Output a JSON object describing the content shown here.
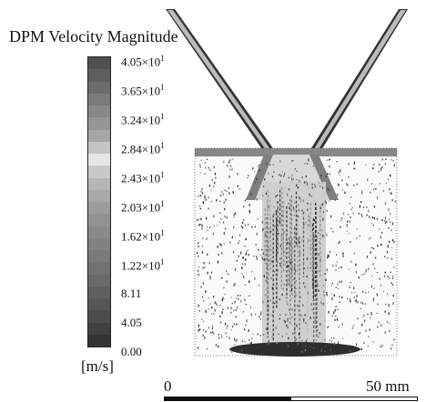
{
  "legend": {
    "title": "DPM Velocity Magnitude",
    "units": "[m/s]",
    "ticks": [
      {
        "label": "4.05×10",
        "sup": "1"
      },
      {
        "label": "3.65×10",
        "sup": "1"
      },
      {
        "label": "3.24×10",
        "sup": "1"
      },
      {
        "label": "2.84×10",
        "sup": "1"
      },
      {
        "label": "2.43×10",
        "sup": "1"
      },
      {
        "label": "2.03×10",
        "sup": "1"
      },
      {
        "label": "1.62×10",
        "sup": "1"
      },
      {
        "label": "1.22×10",
        "sup": "1"
      },
      {
        "label": "8.11",
        "sup": ""
      },
      {
        "label": "4.05",
        "sup": ""
      },
      {
        "label": "0.00",
        "sup": ""
      }
    ],
    "colorbar_colors": [
      "#505050",
      "#5e5e5e",
      "#6c6c6c",
      "#7a7a7a",
      "#888888",
      "#969696",
      "#a6a6a6",
      "#c4c4c4",
      "#e6e6e6",
      "#c8c8c8",
      "#b6b6b6",
      "#a8a8a8",
      "#9c9c9c",
      "#929292",
      "#8a8a8a",
      "#828282",
      "#7a7a7a",
      "#727272",
      "#6a6a6a",
      "#606060",
      "#565656",
      "#4c4c4c",
      "#404040",
      "#343434"
    ]
  },
  "scale_bar": {
    "left_label": "0",
    "right_label": "50 mm"
  }
}
